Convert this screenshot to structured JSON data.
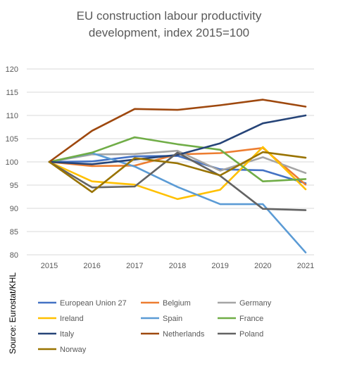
{
  "source_label": "Source: Eurostat/KHL",
  "chart_data": {
    "type": "line",
    "title_lines": [
      "EU construction labour productivity",
      "development, index 2015=100"
    ],
    "x": [
      "2015",
      "2016",
      "2017",
      "2018",
      "2019",
      "2020",
      "2021"
    ],
    "ylim": [
      80,
      120
    ],
    "yticks": [
      80,
      85,
      90,
      95,
      100,
      105,
      110,
      115,
      120
    ],
    "grid": true,
    "legend_position": "bottom",
    "series": [
      {
        "name": "European Union 27",
        "color": "#4472C4",
        "values": [
          100,
          100.1,
          101.2,
          101.3,
          98.4,
          98.2,
          95.4
        ]
      },
      {
        "name": "Belgium",
        "color": "#ED7D31",
        "values": [
          100,
          99.1,
          99.2,
          101.6,
          101.9,
          103.0,
          95.1
        ]
      },
      {
        "name": "Germany",
        "color": "#A5A5A5",
        "values": [
          100,
          101.6,
          101.7,
          102.4,
          98.1,
          101.0,
          97.6
        ]
      },
      {
        "name": "Ireland",
        "color": "#FFC000",
        "values": [
          100,
          95.8,
          95.1,
          92.0,
          94.0,
          103.2,
          94.1
        ]
      },
      {
        "name": "Spain",
        "color": "#5B9BD5",
        "values": [
          100,
          101.9,
          99.0,
          94.6,
          90.9,
          90.9,
          80.5
        ]
      },
      {
        "name": "France",
        "color": "#70AD47",
        "values": [
          100,
          102.0,
          105.3,
          103.8,
          102.6,
          95.8,
          96.3
        ]
      },
      {
        "name": "Italy",
        "color": "#264478",
        "values": [
          100,
          99.5,
          100.5,
          101.5,
          104.0,
          108.3,
          110.0
        ]
      },
      {
        "name": "Netherlands",
        "color": "#9E480E",
        "values": [
          100,
          106.7,
          111.4,
          111.2,
          112.2,
          113.4,
          111.9
        ]
      },
      {
        "name": "Poland",
        "color": "#636363",
        "values": [
          100,
          94.5,
          94.7,
          102.0,
          97.0,
          89.9,
          89.6
        ]
      },
      {
        "name": "Norway",
        "color": "#997300",
        "values": [
          100,
          93.5,
          100.8,
          99.7,
          97.1,
          102.1,
          100.9
        ]
      }
    ]
  }
}
